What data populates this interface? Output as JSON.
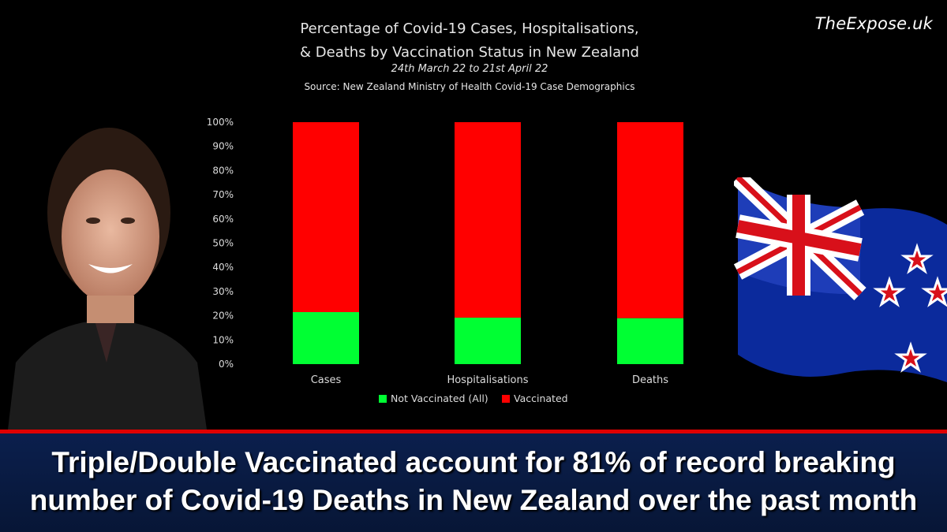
{
  "brand": "TheExpose.uk",
  "headline": {
    "line1": "Triple/Double Vaccinated account for 81% of record breaking",
    "line2": "number of Covid-19 Deaths in New Zealand over the past month"
  },
  "colors": {
    "not_vaccinated": "#00ff33",
    "vaccinated": "#ff0000",
    "banner": "#0b1f4d",
    "divider": "#e00000"
  },
  "chart_data": {
    "type": "bar",
    "stacked": true,
    "title_line1": "Percentage of Covid-19 Cases, Hospitalisations,",
    "title_line2": "& Deaths by Vaccination Status in New Zealand",
    "subtitle": "24th March 22 to 21st April 22",
    "source": "Source: New Zealand Ministry of Health Covid-19 Case Demographics",
    "categories": [
      "Cases",
      "Hospitalisations",
      "Deaths"
    ],
    "series": [
      {
        "name": "Not Vaccinated (All)",
        "values": [
          21.5,
          19.2,
          19.0
        ],
        "color": "#00ff33"
      },
      {
        "name": "Vaccinated",
        "values": [
          78.5,
          80.8,
          81.0
        ],
        "color": "#ff0000"
      }
    ],
    "ylim": [
      0,
      100
    ],
    "yticks": [
      "0%",
      "10%",
      "20%",
      "30%",
      "40%",
      "50%",
      "60%",
      "70%",
      "80%",
      "90%",
      "100%"
    ],
    "grid": false,
    "legend": "bottom"
  }
}
